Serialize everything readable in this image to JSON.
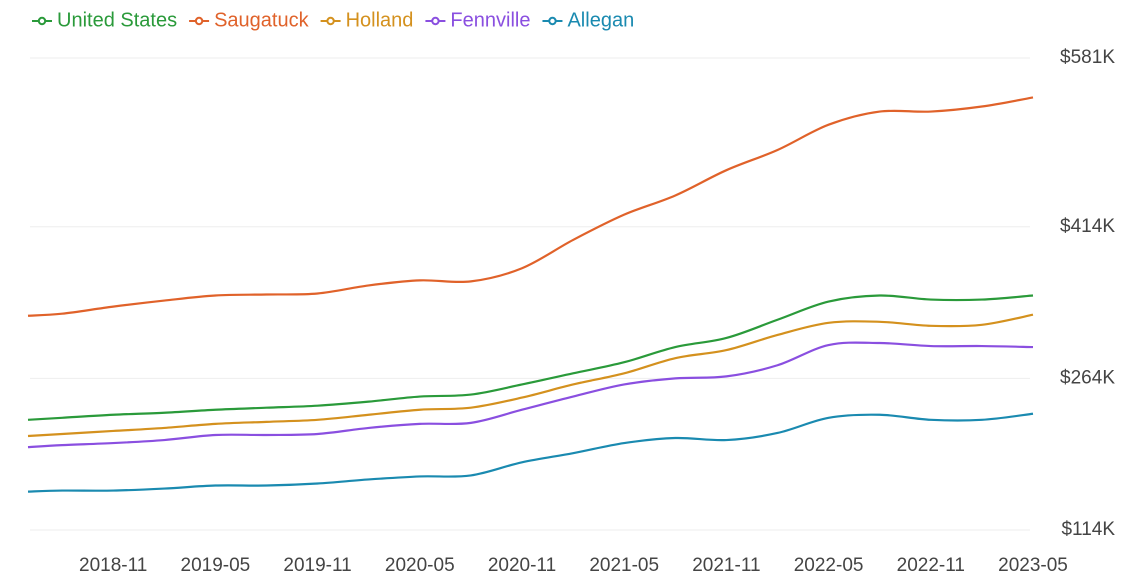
{
  "chart_data": {
    "type": "line",
    "x": [
      "2018-06",
      "2018-08",
      "2018-11",
      "2019-02",
      "2019-05",
      "2019-08",
      "2019-11",
      "2020-02",
      "2020-05",
      "2020-08",
      "2020-11",
      "2021-02",
      "2021-05",
      "2021-08",
      "2021-11",
      "2022-02",
      "2022-05",
      "2022-08",
      "2022-11",
      "2023-02",
      "2023-05"
    ],
    "xlim": [
      "2018-06",
      "2023-05"
    ],
    "xticks": [
      "2018-11",
      "2019-05",
      "2019-11",
      "2020-05",
      "2020-11",
      "2021-05",
      "2021-11",
      "2022-05",
      "2022-11",
      "2023-05"
    ],
    "ylim": [
      114000,
      581000
    ],
    "yticks": [
      {
        "value": 114000,
        "label": "$114K"
      },
      {
        "value": 264000,
        "label": "$264K"
      },
      {
        "value": 414000,
        "label": "$414K"
      },
      {
        "value": 581000,
        "label": "$581K"
      }
    ],
    "grid": true,
    "legend": "top-left",
    "series": [
      {
        "name": "United States",
        "color": "#2a9a3a",
        "values": [
          223000,
          225000,
          228000,
          230000,
          233000,
          235000,
          237000,
          241000,
          246000,
          248000,
          258000,
          269000,
          280000,
          295000,
          304000,
          322000,
          340000,
          346000,
          342000,
          342000,
          346000
        ]
      },
      {
        "name": "Saugatuck",
        "color": "#e0622a",
        "values": [
          326000,
          328000,
          335000,
          341000,
          346000,
          347000,
          348000,
          356000,
          361000,
          360000,
          373000,
          401000,
          426000,
          445000,
          470000,
          490000,
          515000,
          528000,
          528000,
          533000,
          542000
        ]
      },
      {
        "name": "Holland",
        "color": "#d4911e",
        "values": [
          207000,
          209000,
          212000,
          215000,
          219000,
          221000,
          223000,
          228000,
          233000,
          235000,
          245000,
          258000,
          269000,
          284000,
          292000,
          307000,
          319000,
          320000,
          316000,
          317000,
          327000
        ]
      },
      {
        "name": "Fennville",
        "color": "#8a4fe0",
        "values": [
          196000,
          198000,
          200000,
          203000,
          208000,
          208000,
          209000,
          215000,
          219000,
          220000,
          233000,
          246000,
          258000,
          264000,
          266000,
          277000,
          297000,
          299000,
          296000,
          296000,
          295000
        ]
      },
      {
        "name": "Allegan",
        "color": "#1a8ab0",
        "values": [
          152000,
          153000,
          153000,
          155000,
          158000,
          158000,
          160000,
          164000,
          167000,
          168000,
          181000,
          190000,
          200000,
          205000,
          203000,
          210000,
          225000,
          228000,
          223000,
          223000,
          229000
        ]
      }
    ]
  }
}
